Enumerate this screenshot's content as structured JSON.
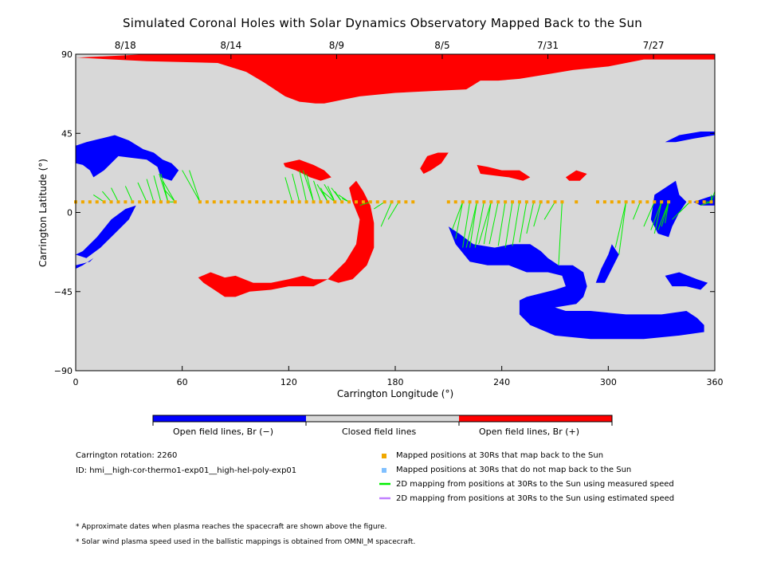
{
  "title": "Simulated Coronal Holes with Solar Dynamics Observatory Mapped Back to the Sun",
  "top_dates": [
    "8/18",
    "8/14",
    "8/9",
    "8/5",
    "7/31",
    "7/27"
  ],
  "colors": {
    "open_negative": "#0000ff",
    "closed": "#d8d8d8",
    "open_positive": "#ff0000",
    "mapped_back": "#f0a800",
    "not_mapped_back": "#80c0ff",
    "measured_speed": "#00ee00",
    "estimated_speed": "#c080ff"
  },
  "colorbar": {
    "labels": [
      "Open field lines, Br (−)",
      "Closed field lines",
      "Open field lines, Br (+)"
    ]
  },
  "info": {
    "rotation": "Carrington rotation: 2260",
    "id": "ID: hmi__high-cor-thermo1-exp01__high-hel-poly-exp01"
  },
  "legend": [
    {
      "icon": "orange-square-marker-icon",
      "label": "Mapped positions at 30Rs that map back to the Sun"
    },
    {
      "icon": "light-blue-square-marker-icon",
      "label": "Mapped positions at 30Rs that do not map back to the Sun"
    },
    {
      "icon": "green-line-icon",
      "label": "2D mapping from positions at 30Rs to the Sun using measured speed"
    },
    {
      "icon": "purple-line-icon",
      "label": "2D mapping from positions at 30Rs to the Sun using estimated speed"
    }
  ],
  "footnotes": [
    "* Approximate dates when plasma reaches the spacecraft are shown above the figure.",
    "* Solar wind plasma speed used in the ballistic mappings is obtained from OMNI_M spacecraft."
  ],
  "chart_data": {
    "type": "heatmap",
    "xlabel": "Carrington Longitude (°)",
    "ylabel": "Carrington Latitude (°)",
    "xlim": [
      0,
      360
    ],
    "ylim": [
      -90,
      90
    ],
    "x_ticks": [
      0,
      60,
      120,
      180,
      240,
      300,
      360
    ],
    "y_ticks": [
      90,
      45,
      0,
      -45,
      -90
    ],
    "y_tick_labels": [
      "90",
      "45",
      "0",
      "−45",
      "−90"
    ],
    "mapped_latitude": 6,
    "mapped_longitudes": [
      0,
      4,
      8,
      12,
      16,
      20,
      24,
      28,
      32,
      36,
      40,
      44,
      48,
      52,
      56,
      70,
      74,
      78,
      82,
      86,
      90,
      94,
      98,
      102,
      106,
      110,
      114,
      118,
      122,
      126,
      130,
      134,
      138,
      142,
      146,
      150,
      154,
      158,
      162,
      166,
      170,
      174,
      178,
      182,
      186,
      190,
      210,
      214,
      218,
      222,
      226,
      230,
      234,
      238,
      242,
      246,
      250,
      254,
      258,
      262,
      266,
      270,
      274,
      282,
      294,
      298,
      302,
      306,
      310,
      314,
      318,
      322,
      326,
      330,
      334,
      346,
      350,
      354,
      358
    ],
    "footpoints": [
      [
        10,
        10
      ],
      [
        15,
        12
      ],
      [
        20,
        14
      ],
      [
        28,
        15
      ],
      [
        35,
        17
      ],
      [
        40,
        19
      ],
      [
        44,
        21
      ],
      [
        47,
        22
      ],
      [
        48,
        22
      ],
      [
        49,
        18
      ],
      [
        50,
        13
      ],
      [
        52,
        6
      ],
      [
        60,
        24
      ],
      [
        64,
        24
      ],
      [
        118,
        20
      ],
      [
        122,
        22
      ],
      [
        126,
        24
      ],
      [
        128,
        24
      ],
      [
        130,
        22
      ],
      [
        134,
        18
      ],
      [
        136,
        16
      ],
      [
        138,
        14
      ],
      [
        139,
        12
      ],
      [
        140,
        16
      ],
      [
        142,
        15
      ],
      [
        144,
        14
      ],
      [
        146,
        12
      ],
      [
        148,
        10
      ],
      [
        150,
        8
      ],
      [
        160,
        4
      ],
      [
        168,
        2
      ],
      [
        172,
        -8
      ],
      [
        176,
        -4
      ],
      [
        212,
        -10
      ],
      [
        214,
        -15
      ],
      [
        218,
        -20
      ],
      [
        220,
        -20
      ],
      [
        222,
        -20
      ],
      [
        225,
        -20
      ],
      [
        227,
        -18
      ],
      [
        230,
        -18
      ],
      [
        233,
        -18
      ],
      [
        238,
        -19
      ],
      [
        242,
        -20
      ],
      [
        246,
        -19
      ],
      [
        250,
        -17
      ],
      [
        254,
        -12
      ],
      [
        258,
        -8
      ],
      [
        264,
        -4
      ],
      [
        272,
        -30
      ],
      [
        304,
        -20
      ],
      [
        306,
        -24
      ],
      [
        314,
        -4
      ],
      [
        320,
        -8
      ],
      [
        324,
        -10
      ],
      [
        326,
        -12
      ],
      [
        328,
        -10
      ],
      [
        330,
        -8
      ],
      [
        332,
        -6
      ],
      [
        336,
        -4
      ],
      [
        340,
        0
      ],
      [
        352,
        4
      ],
      [
        354,
        6
      ],
      [
        358,
        10
      ],
      [
        360,
        12
      ]
    ],
    "regions": {
      "open_positive": [
        [
          [
            0,
            88
          ],
          [
            40,
            90
          ],
          [
            90,
            90
          ],
          [
            140,
            90
          ],
          [
            200,
            90
          ],
          [
            260,
            90
          ],
          [
            300,
            90
          ],
          [
            330,
            90
          ],
          [
            360,
            90
          ],
          [
            360,
            87
          ],
          [
            340,
            87
          ],
          [
            320,
            87
          ],
          [
            300,
            83
          ],
          [
            280,
            81
          ],
          [
            262,
            78
          ],
          [
            250,
            76
          ],
          [
            238,
            75
          ],
          [
            228,
            75
          ],
          [
            220,
            70
          ],
          [
            200,
            69
          ],
          [
            180,
            68
          ],
          [
            160,
            66
          ],
          [
            150,
            64
          ],
          [
            140,
            62
          ],
          [
            135,
            62
          ],
          [
            126,
            63
          ],
          [
            118,
            66
          ],
          [
            106,
            74
          ],
          [
            96,
            80
          ],
          [
            80,
            85
          ],
          [
            40,
            86
          ],
          [
            2,
            88
          ]
        ],
        [
          [
            194,
            25
          ],
          [
            198,
            32
          ],
          [
            204,
            34
          ],
          [
            210,
            34
          ],
          [
            206,
            28
          ],
          [
            200,
            24
          ],
          [
            196,
            22
          ]
        ],
        [
          [
            226,
            27
          ],
          [
            232,
            26
          ],
          [
            240,
            24
          ],
          [
            250,
            24
          ],
          [
            256,
            20
          ],
          [
            252,
            18
          ],
          [
            244,
            20
          ],
          [
            236,
            21
          ],
          [
            228,
            22
          ]
        ],
        [
          [
            276,
            20
          ],
          [
            282,
            24
          ],
          [
            288,
            22
          ],
          [
            284,
            18
          ],
          [
            278,
            18
          ]
        ],
        [
          [
            117,
            28
          ],
          [
            126,
            30
          ],
          [
            134,
            27
          ],
          [
            140,
            24
          ],
          [
            144,
            20
          ],
          [
            138,
            18
          ],
          [
            132,
            20
          ],
          [
            124,
            24
          ],
          [
            118,
            26
          ]
        ],
        [
          [
            69,
            -37
          ],
          [
            76,
            -34
          ],
          [
            84,
            -37
          ],
          [
            90,
            -36
          ],
          [
            100,
            -40
          ],
          [
            110,
            -40
          ],
          [
            120,
            -38
          ],
          [
            128,
            -36
          ],
          [
            134,
            -38
          ],
          [
            142,
            -38
          ],
          [
            148,
            -40
          ],
          [
            156,
            -38
          ],
          [
            164,
            -30
          ],
          [
            168,
            -20
          ],
          [
            168,
            -6
          ],
          [
            166,
            4
          ],
          [
            162,
            12
          ],
          [
            158,
            18
          ],
          [
            154,
            14
          ],
          [
            156,
            6
          ],
          [
            160,
            -4
          ],
          [
            158,
            -18
          ],
          [
            152,
            -28
          ],
          [
            142,
            -38
          ],
          [
            134,
            -42
          ],
          [
            120,
            -42
          ],
          [
            110,
            -44
          ],
          [
            98,
            -45
          ],
          [
            90,
            -48
          ],
          [
            84,
            -48
          ],
          [
            78,
            -44
          ],
          [
            72,
            -40
          ]
        ]
      ],
      "open_negative": [
        [
          [
            0,
            38
          ],
          [
            6,
            40
          ],
          [
            14,
            42
          ],
          [
            22,
            44
          ],
          [
            30,
            41
          ],
          [
            38,
            36
          ],
          [
            44,
            34
          ],
          [
            49,
            30
          ],
          [
            54,
            28
          ],
          [
            58,
            24
          ],
          [
            54,
            18
          ],
          [
            48,
            20
          ],
          [
            46,
            26
          ],
          [
            40,
            30
          ],
          [
            32,
            31
          ],
          [
            24,
            32
          ],
          [
            20,
            28
          ],
          [
            16,
            24
          ],
          [
            10,
            20
          ],
          [
            8,
            24
          ],
          [
            4,
            27
          ],
          [
            0,
            28
          ]
        ],
        [
          [
            0,
            -24
          ],
          [
            6,
            -26
          ],
          [
            14,
            -20
          ],
          [
            22,
            -12
          ],
          [
            30,
            -4
          ],
          [
            34,
            4
          ],
          [
            28,
            2
          ],
          [
            20,
            -4
          ],
          [
            12,
            -14
          ],
          [
            4,
            -22
          ]
        ],
        [
          [
            0,
            -30
          ],
          [
            8,
            -28
          ],
          [
            10,
            -26
          ],
          [
            4,
            -30
          ],
          [
            0,
            -32
          ]
        ],
        [
          [
            210,
            -8
          ],
          [
            216,
            -12
          ],
          [
            224,
            -18
          ],
          [
            236,
            -20
          ],
          [
            246,
            -18
          ],
          [
            256,
            -18
          ],
          [
            262,
            -22
          ],
          [
            266,
            -26
          ],
          [
            272,
            -30
          ],
          [
            280,
            -30
          ],
          [
            286,
            -34
          ],
          [
            288,
            -42
          ],
          [
            286,
            -48
          ],
          [
            282,
            -52
          ],
          [
            270,
            -54
          ],
          [
            276,
            -56
          ],
          [
            290,
            -56
          ],
          [
            310,
            -58
          ],
          [
            330,
            -58
          ],
          [
            344,
            -56
          ],
          [
            350,
            -60
          ],
          [
            354,
            -64
          ],
          [
            354,
            -68
          ],
          [
            340,
            -70
          ],
          [
            320,
            -72
          ],
          [
            290,
            -72
          ],
          [
            270,
            -70
          ],
          [
            256,
            -64
          ],
          [
            250,
            -58
          ],
          [
            250,
            -50
          ],
          [
            254,
            -48
          ],
          [
            270,
            -44
          ],
          [
            276,
            -42
          ],
          [
            274,
            -36
          ],
          [
            266,
            -34
          ],
          [
            254,
            -34
          ],
          [
            244,
            -30
          ],
          [
            232,
            -30
          ],
          [
            222,
            -28
          ],
          [
            214,
            -18
          ]
        ],
        [
          [
            298,
            -40
          ],
          [
            302,
            -32
          ],
          [
            306,
            -24
          ],
          [
            302,
            -18
          ],
          [
            300,
            -24
          ],
          [
            296,
            -32
          ],
          [
            293,
            -40
          ]
        ],
        [
          [
            326,
            10
          ],
          [
            332,
            14
          ],
          [
            338,
            18
          ],
          [
            340,
            10
          ],
          [
            344,
            6
          ],
          [
            340,
            0
          ],
          [
            336,
            -8
          ],
          [
            334,
            -14
          ],
          [
            328,
            -12
          ],
          [
            324,
            -4
          ]
        ],
        [
          [
            332,
            -36
          ],
          [
            340,
            -34
          ],
          [
            350,
            -38
          ],
          [
            356,
            -40
          ],
          [
            352,
            -44
          ],
          [
            344,
            -42
          ],
          [
            336,
            -42
          ]
        ],
        [
          [
            332,
            40
          ],
          [
            340,
            44
          ],
          [
            352,
            46
          ],
          [
            360,
            46
          ],
          [
            360,
            44
          ],
          [
            348,
            42
          ],
          [
            338,
            40
          ]
        ],
        [
          [
            348,
            6
          ],
          [
            354,
            8
          ],
          [
            360,
            10
          ],
          [
            360,
            4
          ],
          [
            352,
            4
          ]
        ]
      ]
    }
  }
}
